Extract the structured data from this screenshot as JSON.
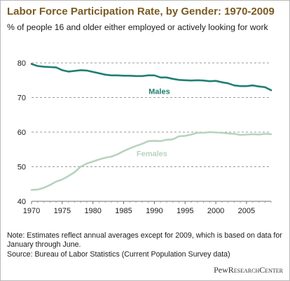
{
  "header": {
    "title": "Labor Force Participation Rate, by Gender: 1970-2009",
    "subtitle": "% of people 16 and older either employed or actively looking for work"
  },
  "footer": {
    "note": "Note: Estimates reflect annual averages except for 2009, which is based on data for January through June.",
    "source": "Source: Bureau of Labor Statistics (Current Population Survey data)",
    "logo_part1": "Pew",
    "logo_part2": "ResearchCenter"
  },
  "colors": {
    "males": "#1f7f73",
    "females": "#b7d3bd",
    "title": "#7a5a22",
    "grid": "#9a9a9a"
  },
  "chart_data": {
    "type": "line",
    "title": "Labor Force Participation Rate, by Gender: 1970-2009",
    "xlabel": "",
    "ylabel": "",
    "xlim": [
      1970,
      2009
    ],
    "ylim": [
      40,
      80
    ],
    "yticks": [
      40,
      50,
      60,
      70,
      80
    ],
    "xticks": [
      1970,
      1975,
      1980,
      1985,
      1990,
      1995,
      2000,
      2005
    ],
    "grid": "horizontal dashed",
    "x": [
      1970,
      1971,
      1972,
      1973,
      1974,
      1975,
      1976,
      1977,
      1978,
      1979,
      1980,
      1981,
      1982,
      1983,
      1984,
      1985,
      1986,
      1987,
      1988,
      1989,
      1990,
      1991,
      1992,
      1993,
      1994,
      1995,
      1996,
      1997,
      1998,
      1999,
      2000,
      2001,
      2002,
      2003,
      2004,
      2005,
      2006,
      2007,
      2008,
      2009
    ],
    "series": [
      {
        "name": "Males",
        "values": [
          79.7,
          79.1,
          78.9,
          78.8,
          78.7,
          77.9,
          77.5,
          77.7,
          77.9,
          77.8,
          77.4,
          77.0,
          76.6,
          76.4,
          76.4,
          76.3,
          76.3,
          76.2,
          76.2,
          76.4,
          76.4,
          75.8,
          75.8,
          75.4,
          75.1,
          75.0,
          74.9,
          75.0,
          74.9,
          74.7,
          74.8,
          74.4,
          74.1,
          73.5,
          73.3,
          73.3,
          73.5,
          73.2,
          73.0,
          72.1
        ]
      },
      {
        "name": "Females",
        "values": [
          43.3,
          43.4,
          43.9,
          44.7,
          45.7,
          46.3,
          47.3,
          48.4,
          50.0,
          50.9,
          51.5,
          52.1,
          52.6,
          52.9,
          53.6,
          54.5,
          55.3,
          56.0,
          56.6,
          57.4,
          57.5,
          57.4,
          57.8,
          57.9,
          58.8,
          58.9,
          59.3,
          59.8,
          59.8,
          60.0,
          59.9,
          59.8,
          59.6,
          59.5,
          59.2,
          59.3,
          59.4,
          59.3,
          59.5,
          59.4
        ]
      }
    ]
  }
}
